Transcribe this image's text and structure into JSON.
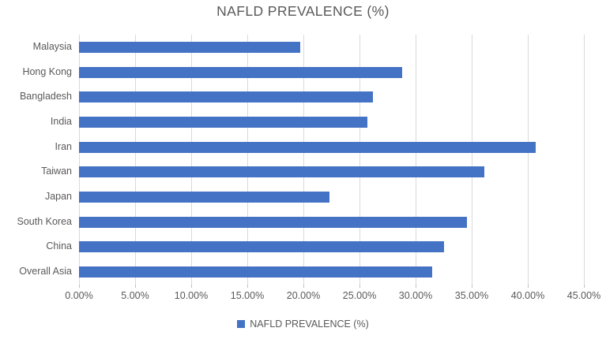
{
  "chart_data": {
    "type": "bar",
    "orientation": "horizontal",
    "title": "NAFLD PREVALENCE (%)",
    "categories": [
      "Malaysia",
      "Hong Kong",
      "Bangladesh",
      "India",
      "Iran",
      "Taiwan",
      "Japan",
      "South Korea",
      "China",
      "Overall Asia"
    ],
    "values": [
      19.7,
      28.8,
      26.2,
      25.7,
      40.7,
      36.1,
      22.3,
      34.6,
      32.5,
      31.5
    ],
    "xlabel": "",
    "ylabel": "",
    "xlim": [
      0,
      45
    ],
    "x_tick_step": 5,
    "x_tick_labels": [
      "0.00%",
      "5.00%",
      "10.00%",
      "15.00%",
      "20.00%",
      "25.00%",
      "30.00%",
      "35.00%",
      "40.00%",
      "45.00%"
    ],
    "grid": true,
    "legend_position": "bottom",
    "legend": [
      {
        "label": "NAFLD PREVALENCE (%)",
        "color": "#4472C4"
      }
    ],
    "colors": {
      "bar": "#4472C4",
      "gridline": "#d9d9d9",
      "tick": "#bfbfbf",
      "text": "#595959"
    }
  }
}
